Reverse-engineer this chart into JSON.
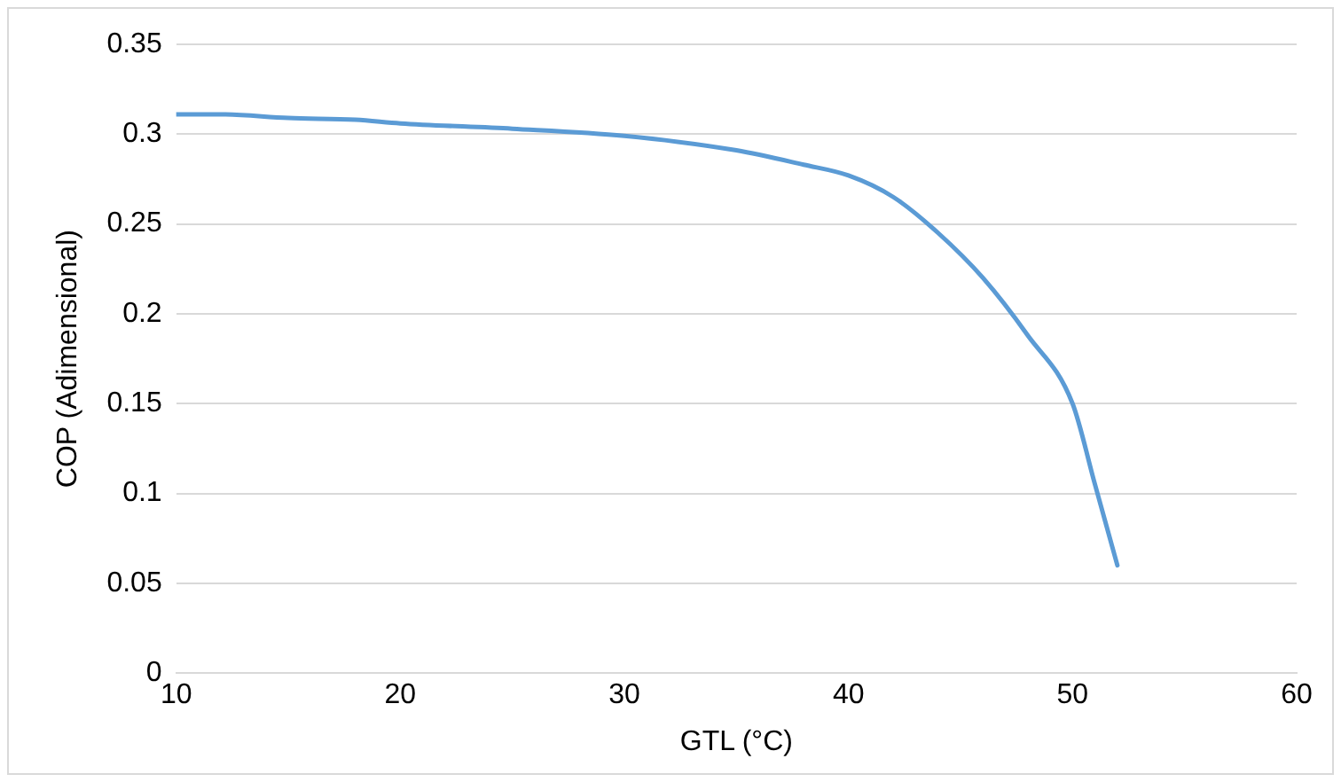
{
  "chart_data": {
    "type": "line",
    "xlabel": "GTL (°C)",
    "ylabel": "COP (Adimensional)",
    "x": [
      10,
      12,
      15,
      18,
      20,
      25,
      30,
      35,
      38,
      40,
      42,
      44,
      46,
      48,
      50,
      51,
      52
    ],
    "series": [
      {
        "color": "#5b9bd5",
        "values": [
          0.311,
          0.311,
          0.309,
          0.308,
          0.306,
          0.303,
          0.299,
          0.291,
          0.283,
          0.277,
          0.265,
          0.245,
          0.22,
          0.188,
          0.15,
          0.105,
          0.06
        ]
      }
    ],
    "xlim": [
      10,
      60
    ],
    "xticks": [
      10,
      20,
      30,
      40,
      50,
      60
    ],
    "ylim": [
      0,
      0.35
    ],
    "yticks": [
      0,
      0.05,
      0.1,
      0.15,
      0.2,
      0.25,
      0.3,
      0.35
    ],
    "grid": "y",
    "legend": false,
    "marker": "none",
    "line_style": "solid"
  }
}
